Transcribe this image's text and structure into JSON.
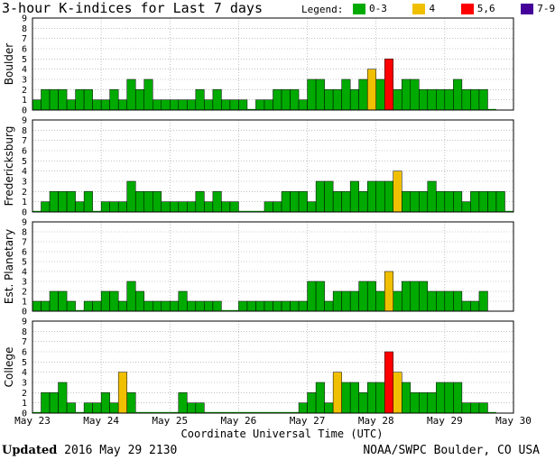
{
  "title": "3-hour K-indices for Last 7 days",
  "legend": {
    "label": "Legend:",
    "items": [
      {
        "label": "0-3",
        "color": "#00aa00"
      },
      {
        "label": "4",
        "color": "#f0c000"
      },
      {
        "label": "5,6",
        "color": "#ff0000"
      },
      {
        "label": "7-9",
        "color": "#440099"
      }
    ]
  },
  "footer": {
    "updated_label": "Updated",
    "updated_value": "2016 May 29 2130",
    "credit": "NOAA/SWPC Boulder, CO USA"
  },
  "chart_data": {
    "type": "bar",
    "xlabel": "Coordinate Universal Time (UTC)",
    "x_ticks": [
      "May 23",
      "May 24",
      "May 25",
      "May 26",
      "May 27",
      "May 28",
      "May 29",
      "May 30"
    ],
    "ylim": [
      0,
      9
    ],
    "y_ticks": [
      "0",
      "1",
      "2",
      "3",
      "4",
      "5",
      "6",
      "7",
      "8",
      "9"
    ],
    "bins_per_day": 8,
    "color_rules": [
      {
        "min": 0,
        "max": 3,
        "color": "#00aa00"
      },
      {
        "min": 4,
        "max": 4,
        "color": "#f0c000"
      },
      {
        "min": 5,
        "max": 6,
        "color": "#ff0000"
      },
      {
        "min": 7,
        "max": 9,
        "color": "#440099"
      }
    ],
    "series": [
      {
        "name": "Boulder",
        "values": [
          1,
          2,
          2,
          2,
          1,
          2,
          2,
          1,
          1,
          2,
          1,
          3,
          2,
          3,
          1,
          1,
          1,
          1,
          1,
          2,
          1,
          2,
          1,
          1,
          1,
          0,
          1,
          1,
          2,
          2,
          2,
          1,
          3,
          3,
          2,
          2,
          3,
          2,
          3,
          4,
          3,
          5,
          2,
          3,
          3,
          2,
          2,
          2,
          2,
          3,
          2,
          2,
          2,
          0
        ]
      },
      {
        "name": "Fredericksburg",
        "values": [
          0,
          1,
          2,
          2,
          2,
          1,
          2,
          0,
          1,
          1,
          1,
          3,
          2,
          2,
          2,
          1,
          1,
          1,
          1,
          2,
          1,
          2,
          1,
          1,
          0,
          0,
          0,
          1,
          1,
          2,
          2,
          2,
          1,
          3,
          3,
          2,
          2,
          3,
          2,
          3,
          3,
          3,
          4,
          2,
          2,
          2,
          3,
          2,
          2,
          2,
          1,
          2,
          2,
          2,
          2,
          0
        ]
      },
      {
        "name": "Est. Planetary",
        "values": [
          1,
          1,
          2,
          2,
          1,
          0,
          1,
          1,
          2,
          2,
          1,
          3,
          2,
          1,
          1,
          1,
          1,
          2,
          1,
          1,
          1,
          1,
          0,
          0,
          1,
          1,
          1,
          1,
          1,
          1,
          1,
          1,
          3,
          3,
          1,
          2,
          2,
          2,
          3,
          3,
          2,
          4,
          2,
          3,
          3,
          3,
          2,
          2,
          2,
          2,
          1,
          1,
          2
        ]
      },
      {
        "name": "College",
        "values": [
          0,
          2,
          2,
          3,
          1,
          0,
          1,
          1,
          2,
          1,
          4,
          2,
          0,
          0,
          0,
          0,
          0,
          2,
          1,
          1,
          0,
          0,
          0,
          0,
          0,
          0,
          0,
          0,
          0,
          0,
          0,
          1,
          2,
          3,
          1,
          4,
          3,
          3,
          2,
          3,
          3,
          6,
          4,
          3,
          2,
          2,
          2,
          3,
          3,
          3,
          1,
          1,
          1,
          0
        ]
      }
    ]
  }
}
